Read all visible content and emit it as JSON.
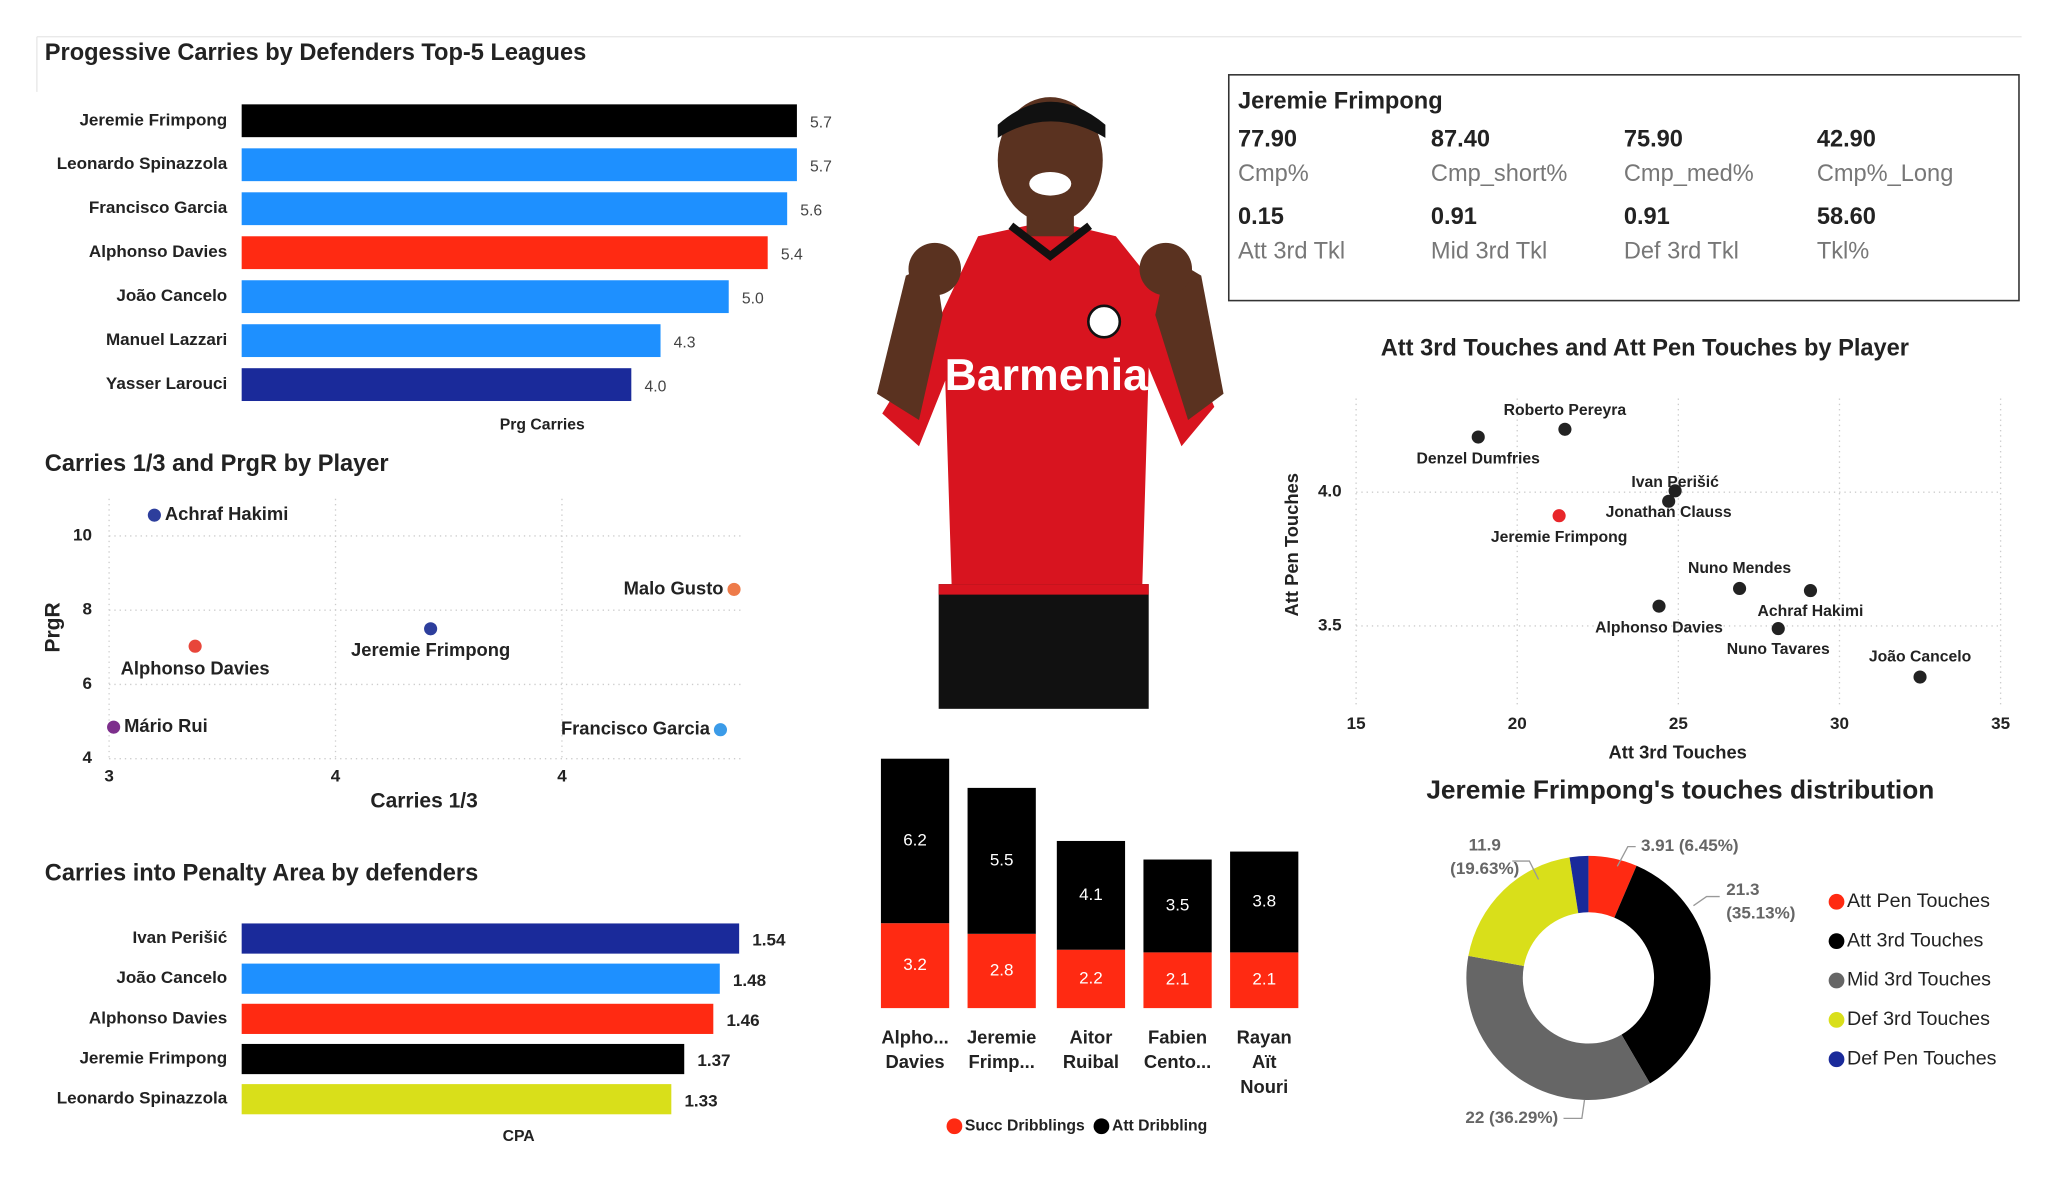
{
  "chart_data": [
    {
      "type": "hbar",
      "title": "Progessive Carries by Defenders Top-5 Leagues",
      "x_label": "Prg Carries",
      "categories": [
        "Jeremie Frimpong",
        "Leonardo Spinazzola",
        "Francisco Garcia",
        "Alphonso Davies",
        "João Cancelo",
        "Manuel Lazzari",
        "Yasser Larouci"
      ],
      "values": [
        5.7,
        5.7,
        5.6,
        5.4,
        5.0,
        4.3,
        4.0
      ],
      "value_labels": [
        "5.7",
        "5.7",
        "5.6",
        "5.4",
        "5.0",
        "4.3",
        "4.0"
      ],
      "colors": [
        "#000000",
        "#1e90ff",
        "#1e90ff",
        "#ff2a12",
        "#1e90ff",
        "#1e90ff",
        "#1a2a9a"
      ],
      "xlim": [
        0,
        5.7
      ]
    },
    {
      "type": "scatter",
      "title": "Carries 1/3 and PrgR by Player",
      "x_label": "Carries 1/3",
      "y_label": "PrgR",
      "labels": [
        "Achraf Hakimi",
        "Malo Gusto",
        "Jeremie Frimpong",
        "Alphonso Davies",
        "Mário Rui",
        "Francisco Garcia"
      ],
      "x": [
        3.1,
        4.38,
        3.71,
        3.19,
        3.01,
        4.35
      ],
      "values": [
        10.56,
        8.56,
        7.5,
        7.03,
        4.85,
        4.78
      ],
      "colors": [
        "#2d3e9c",
        "#ee7b4a",
        "#2d3e9c",
        "#e8463a",
        "#7d2f8c",
        "#3b9be8"
      ],
      "xlim": [
        3,
        4.4
      ],
      "ylim": [
        4,
        11
      ],
      "xticks": [
        3,
        {
          "value": 3.5,
          "label": "4"
        },
        4
      ],
      "yticks": [
        4,
        6,
        8,
        10
      ],
      "grid": true
    },
    {
      "type": "hbar",
      "title": "Carries into Penalty Area by defenders",
      "x_label": "CPA",
      "categories": [
        "Ivan Perišić",
        "João Cancelo",
        "Alphonso Davies",
        "Jeremie Frimpong",
        "Leonardo Spinazzola"
      ],
      "values": [
        1.54,
        1.48,
        1.46,
        1.37,
        1.33
      ],
      "colors": [
        "#1a2a9a",
        "#1e90ff",
        "#ff2a12",
        "#000000",
        "#d9df1a"
      ],
      "xlim": [
        0,
        1.54
      ]
    },
    {
      "type": "stacked_bar",
      "categories": [
        "Alpho... Davies",
        "Jeremie Frimp...",
        "Aitor Ruibal",
        "Fabien Cento...",
        "Rayan Aït Nouri"
      ],
      "series": [
        {
          "name": "Succ Dribblings",
          "color": "#ff2a12",
          "values": [
            3.2,
            2.8,
            2.2,
            2.1,
            2.1
          ]
        },
        {
          "name": "Att Dribbling",
          "color": "#000000",
          "values": [
            6.2,
            5.5,
            4.1,
            3.5,
            3.8
          ]
        }
      ],
      "ylim": [
        0,
        9.4
      ]
    },
    {
      "type": "scatter",
      "title": "Att 3rd Touches and Att Pen Touches by Player",
      "x_label": "Att 3rd Touches",
      "y_label": "Att Pen Touches",
      "labels": [
        "Roberto Pereyra",
        "Denzel Dumfries",
        "Ivan Perišić",
        "Jonathan Clauss",
        "Jeremie Frimpong",
        "Nuno Mendes",
        "Achraf Hakimi",
        "Alphonso Davies",
        "Nuno Tavares",
        "João Cancelo"
      ],
      "x": [
        21.48,
        18.79,
        24.9,
        24.7,
        21.3,
        26.9,
        29.1,
        24.4,
        28.1,
        32.5
      ],
      "values": [
        4.235,
        4.206,
        4.005,
        3.966,
        3.912,
        3.64,
        3.632,
        3.574,
        3.49,
        3.309
      ],
      "colors": [
        "#222222",
        "#222222",
        "#222222",
        "#222222",
        "#e8262a",
        "#222222",
        "#222222",
        "#222222",
        "#222222",
        "#222222"
      ],
      "xlim": [
        15,
        35
      ],
      "ylim": [
        3.2,
        4.35
      ],
      "xticks": [
        15,
        20,
        25,
        30,
        35
      ],
      "yticks": [
        3.5,
        {
          "value": 4,
          "label": "4.0"
        }
      ],
      "grid": true
    },
    {
      "type": "donut",
      "title": "Jeremie Frimpong's touches distribution",
      "categories": [
        "Att Pen Touches",
        "Att 3rd Touches",
        "Mid 3rd Touches",
        "Def 3rd Touches",
        "Def Pen Touches"
      ],
      "values": [
        3.91,
        21.3,
        22,
        11.9,
        1.5
      ],
      "value_labels": [
        "3.91 (6.45%)",
        "21.3 (35.13%)",
        "22 (36.29%)",
        "11.9 (19.63%)",
        null
      ],
      "colors": [
        "#ff2a12",
        "#000000",
        "#666666",
        "#d9df1a",
        "#1a2a9a"
      ],
      "legend": "right"
    }
  ],
  "card": {
    "title": "Jeremie Frimpong",
    "items": [
      {
        "value": "77.90",
        "label": "Cmp%"
      },
      {
        "value": "87.40",
        "label": "Cmp_short%"
      },
      {
        "value": "75.90",
        "label": "Cmp_med%"
      },
      {
        "value": "42.90",
        "label": "Cmp%_Long"
      },
      {
        "value": "0.15",
        "label": "Att 3rd Tkl"
      },
      {
        "value": "0.91",
        "label": "Mid 3rd Tkl"
      },
      {
        "value": "0.91",
        "label": "Def 3rd Tkl"
      },
      {
        "value": "58.60",
        "label": "Tkl%"
      }
    ]
  },
  "photo": {
    "shirt_text": "Barmenia"
  }
}
